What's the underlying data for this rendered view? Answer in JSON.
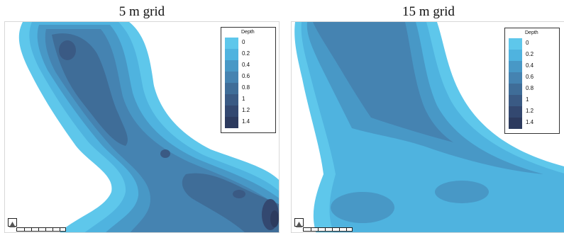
{
  "panels": [
    {
      "title": "5 m grid",
      "legend": {
        "title": "Depth",
        "items": [
          {
            "label": "0",
            "color": "#5ec7eb"
          },
          {
            "label": "0.2",
            "color": "#4fb3df"
          },
          {
            "label": "0.4",
            "color": "#4898c6"
          },
          {
            "label": "0.6",
            "color": "#4583b1"
          },
          {
            "label": "0.8",
            "color": "#3f6d98"
          },
          {
            "label": "1",
            "color": "#3a5a84"
          },
          {
            "label": "1.2",
            "color": "#334870"
          },
          {
            "label": "1.4",
            "color": "#2c3a5e"
          }
        ]
      }
    },
    {
      "title": "15 m grid",
      "legend": {
        "title": "Depth",
        "items": [
          {
            "label": "0",
            "color": "#5ec7eb"
          },
          {
            "label": "0.2",
            "color": "#4fb3df"
          },
          {
            "label": "0.4",
            "color": "#4898c6"
          },
          {
            "label": "0.6",
            "color": "#4583b1"
          },
          {
            "label": "0.8",
            "color": "#3f6d98"
          },
          {
            "label": "1",
            "color": "#3a5a84"
          },
          {
            "label": "1.2",
            "color": "#334870"
          },
          {
            "label": "1.4",
            "color": "#2c3a5e"
          }
        ]
      }
    }
  ]
}
